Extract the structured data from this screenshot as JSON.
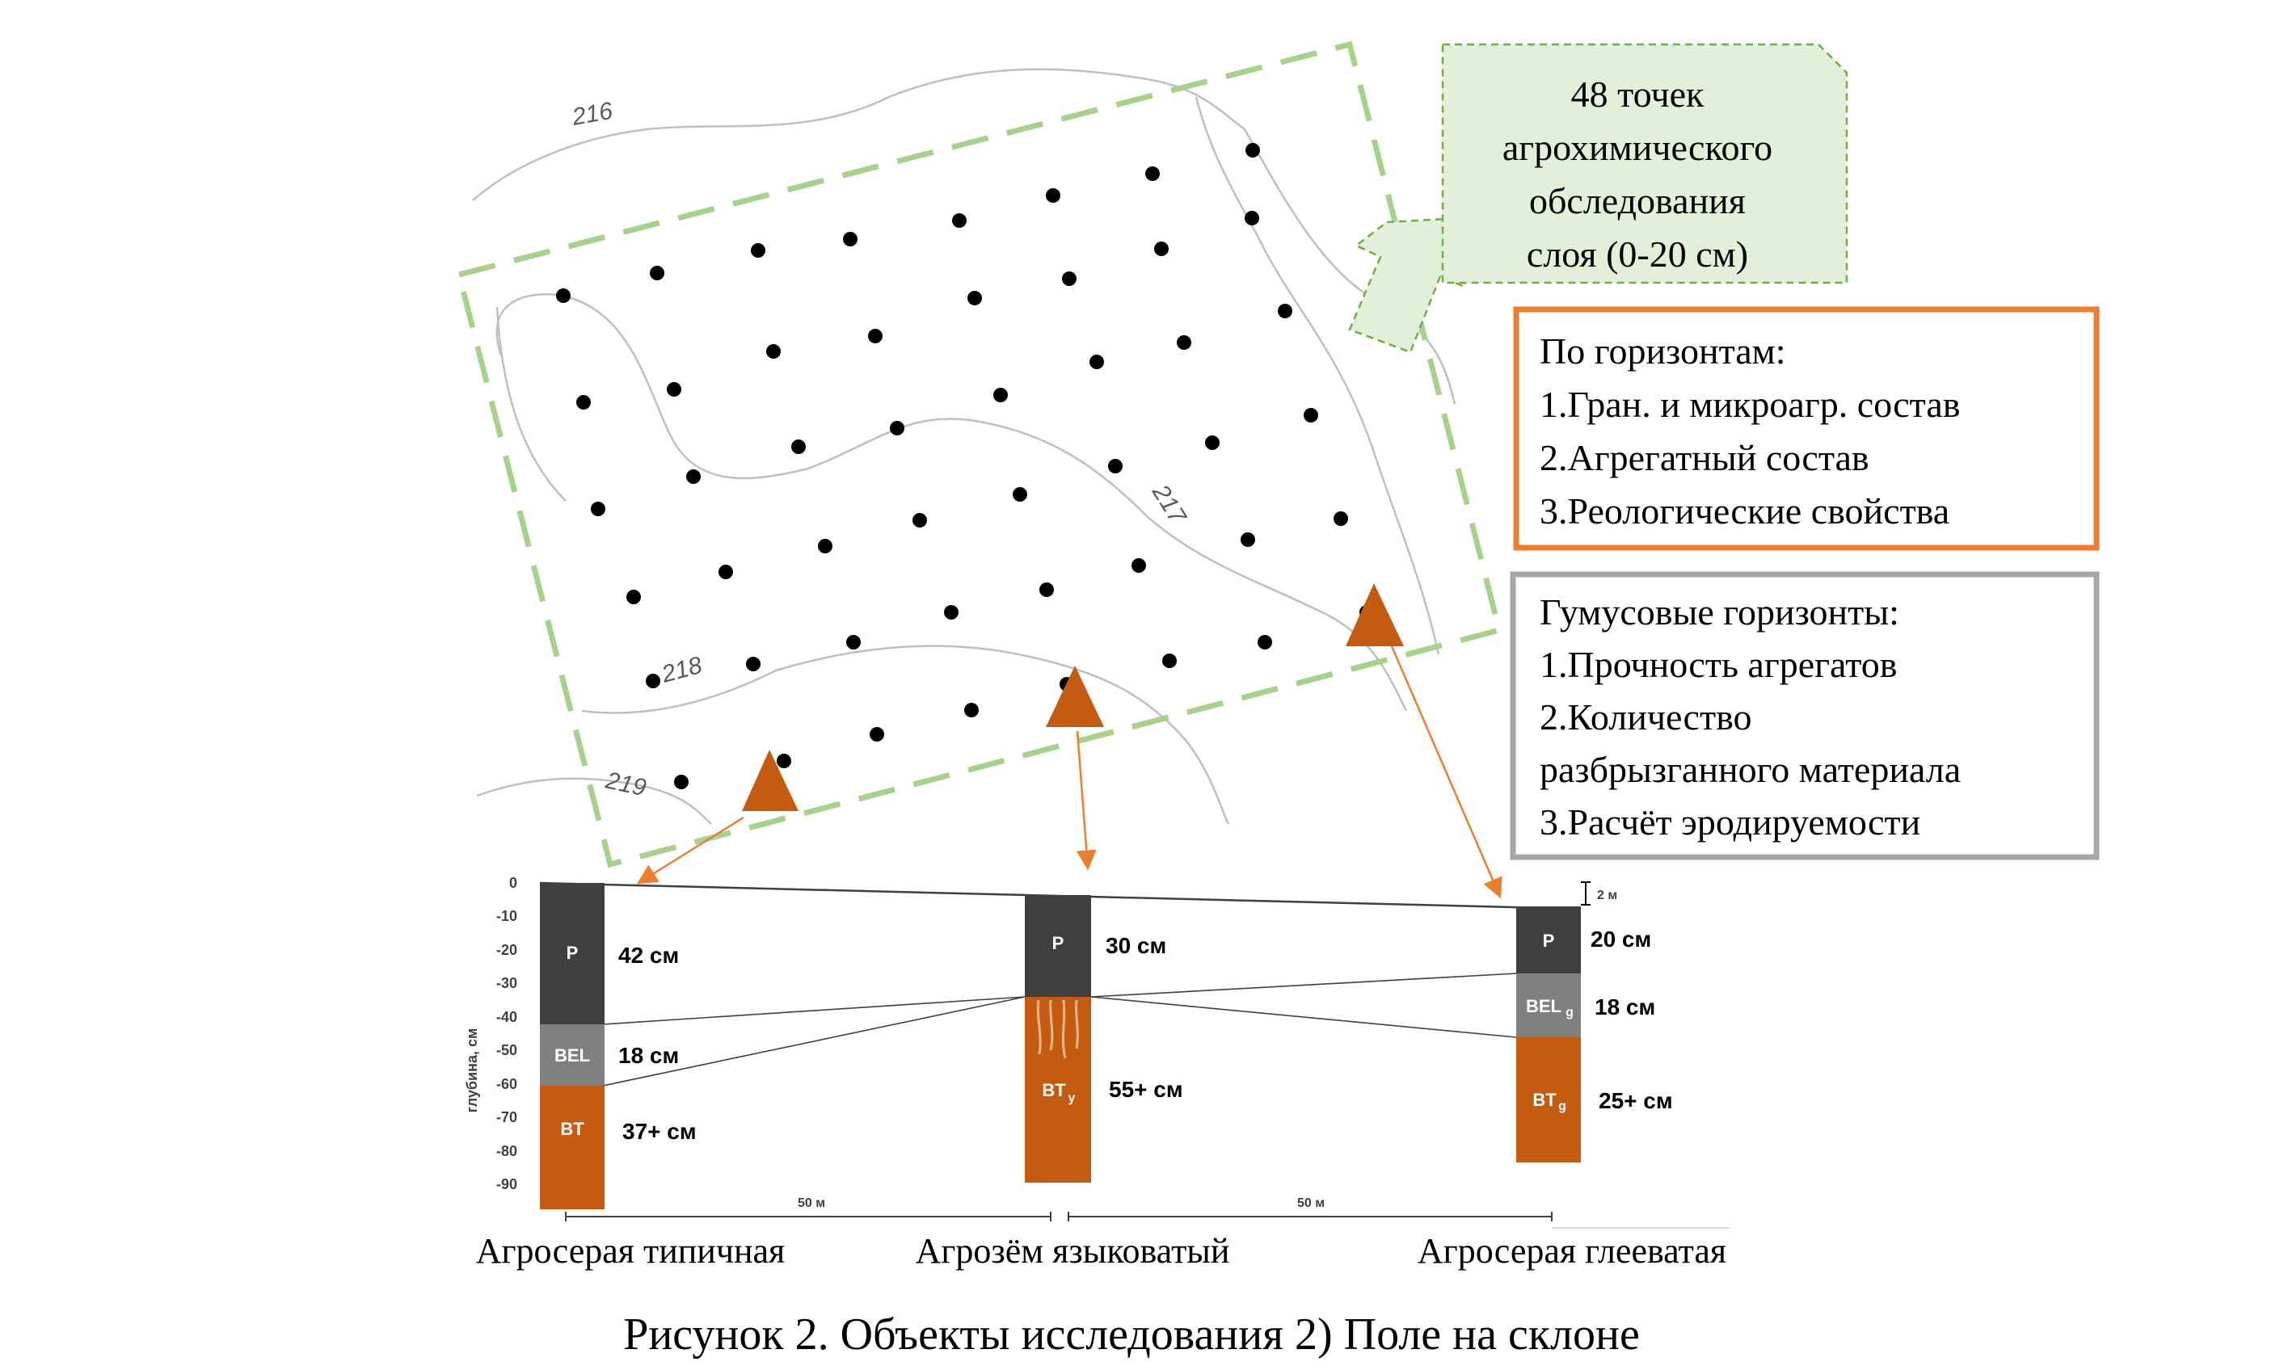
{
  "map": {
    "contour_labels": [
      "216",
      "217",
      "218",
      "219"
    ],
    "points_callout": [
      "48 точек",
      "агрохимического",
      "обследования",
      "слоя (0-20 см)"
    ]
  },
  "boxes": {
    "horizons": {
      "color": "#ED7D31",
      "lines": [
        "По горизонтам:",
        "1.Гран. и микроагр. состав",
        "2.Агрегатный состав",
        "3.Реологические свойства"
      ]
    },
    "humus": {
      "color": "#A6A6A6",
      "lines": [
        "Гумусовые горизонты:",
        "1.Прочность агрегатов",
        "2.Количество",
        "разбрызганного материала",
        "3.Расчёт эродируемости"
      ]
    }
  },
  "profile": {
    "ylabel": "глубина, см",
    "ticks": [
      "0",
      "-10",
      "-20",
      "-30",
      "-40",
      "-50",
      "-60",
      "-70",
      "-80",
      "-90"
    ],
    "scale_label": "2 м",
    "distance_labels": [
      "50 м",
      "50 м"
    ],
    "colors": {
      "P": "#3F3F3F",
      "BEL": "#808080",
      "BT": "#C55A11"
    },
    "columns": [
      {
        "name": "Агросерая типичная",
        "layers": [
          {
            "code": "P",
            "thickness": "42 см"
          },
          {
            "code": "BEL",
            "thickness": "18 см"
          },
          {
            "code": "BT",
            "thickness": "37+ см"
          }
        ]
      },
      {
        "name": "Агрозём языковатый",
        "layers": [
          {
            "code": "P",
            "thickness": "30 см"
          },
          {
            "code": "BT",
            "sub": "y",
            "thickness": "55+ см"
          }
        ]
      },
      {
        "name": "Агросерая глееватая",
        "layers": [
          {
            "code": "P",
            "thickness": "20 см"
          },
          {
            "code": "BEL",
            "sub": "g",
            "thickness": "18 см"
          },
          {
            "code": "BT",
            "sub": "g",
            "thickness": "25+ см"
          }
        ]
      }
    ]
  },
  "caption": "Рисунок 2. Объекты исследования 2) Поле на склоне"
}
